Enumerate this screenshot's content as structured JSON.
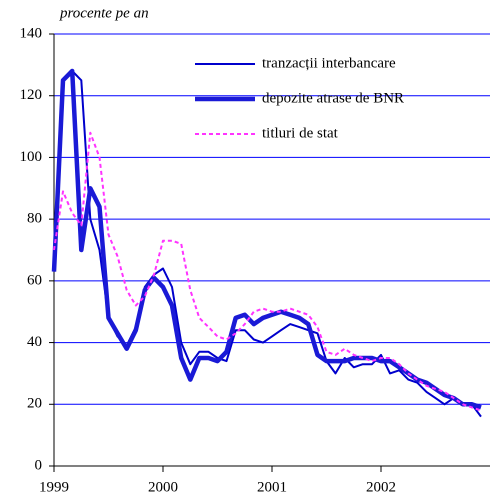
{
  "chart_data": {
    "type": "line",
    "subtitle": "procente pe an",
    "x": [
      1999,
      1999.083,
      1999.167,
      1999.25,
      1999.333,
      1999.417,
      1999.5,
      1999.583,
      1999.667,
      1999.75,
      1999.833,
      1999.917,
      2000,
      2000.083,
      2000.167,
      2000.25,
      2000.333,
      2000.417,
      2000.5,
      2000.583,
      2000.667,
      2000.75,
      2000.833,
      2000.917,
      2001,
      2001.083,
      2001.167,
      2001.25,
      2001.333,
      2001.417,
      2001.5,
      2001.583,
      2001.667,
      2001.75,
      2001.833,
      2001.917,
      2002,
      2002.083,
      2002.167,
      2002.25,
      2002.333,
      2002.417,
      2002.5,
      2002.583,
      2002.667,
      2002.75,
      2002.833,
      2002.917
    ],
    "series": [
      {
        "name": "tranzacții interbancare",
        "color": "#0000cc",
        "width": 2,
        "values": [
          63,
          125,
          128,
          125,
          80,
          70,
          48,
          42,
          39,
          45,
          58,
          62,
          64,
          58,
          40,
          33,
          37,
          37,
          35,
          34,
          44,
          44,
          41,
          40,
          42,
          44,
          46,
          45,
          44,
          43,
          34,
          30,
          35,
          32,
          33,
          33,
          36,
          30,
          31,
          28,
          27,
          24,
          22,
          20,
          22,
          20,
          20,
          16
        ]
      },
      {
        "name": "depozite atrase de BNR",
        "color": "#1a1ad6",
        "width": 4.5,
        "values": [
          63,
          125,
          128,
          70,
          90,
          84,
          48,
          43,
          38,
          44,
          57,
          61,
          58,
          52,
          35,
          28,
          35,
          35,
          34,
          37,
          48,
          49,
          46,
          48,
          49,
          50,
          49,
          48,
          46,
          36,
          34,
          34,
          34,
          35,
          35,
          35,
          34,
          34,
          32,
          30,
          28,
          27,
          25,
          23,
          22,
          20,
          20,
          19
        ]
      },
      {
        "name": "titluri de stat",
        "color": "#ff33ff",
        "width": 2,
        "dashed": true,
        "values": [
          70,
          89,
          82,
          78,
          108,
          100,
          75,
          68,
          57,
          52,
          55,
          62,
          73,
          73,
          72,
          57,
          48,
          45,
          42,
          41,
          43,
          46,
          50,
          51,
          50,
          50,
          51,
          50,
          49,
          45,
          37,
          36,
          38,
          36,
          35,
          34,
          35,
          35,
          33,
          30,
          28,
          26,
          25,
          24,
          22,
          20,
          19,
          18
        ]
      }
    ],
    "xlim": [
      1999,
      2003
    ],
    "xticks": [
      1999,
      2000,
      2001,
      2002
    ],
    "ylim": [
      0,
      140
    ],
    "yticks": [
      0,
      20,
      40,
      60,
      80,
      100,
      120,
      140
    ],
    "grid": true,
    "grid_color": "#0000ff",
    "legend": "upper right"
  }
}
